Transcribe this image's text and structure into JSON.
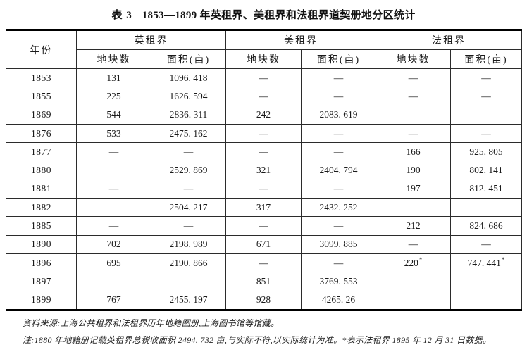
{
  "title_label": "表 3",
  "title_text": "1853—1899 年英租界、美租界和法租界道契册地分区统计",
  "colors": {
    "background": "#ffffff",
    "text": "#1a1a1a",
    "border_thin": "#2b2b2b",
    "border_thick": "#000000"
  },
  "table": {
    "year_header": "年份",
    "groups": [
      "英租界",
      "美租界",
      "法租界"
    ],
    "sub_headers": [
      "地块数",
      "面积(亩)"
    ],
    "rows": [
      {
        "year": "1853",
        "cells": [
          "131",
          "1096. 418",
          "—",
          "—",
          "—",
          "—"
        ]
      },
      {
        "year": "1855",
        "cells": [
          "225",
          "1626. 594",
          "—",
          "—",
          "—",
          "—"
        ]
      },
      {
        "year": "1869",
        "cells": [
          "544",
          "2836. 311",
          "242",
          "2083. 619",
          "",
          ""
        ]
      },
      {
        "year": "1876",
        "cells": [
          "533",
          "2475. 162",
          "—",
          "—",
          "—",
          "—"
        ]
      },
      {
        "year": "1877",
        "cells": [
          "—",
          "—",
          "—",
          "—",
          "166",
          "925. 805"
        ]
      },
      {
        "year": "1880",
        "cells": [
          "",
          "2529. 869",
          "321",
          "2404. 794",
          "190",
          "802. 141"
        ]
      },
      {
        "year": "1881",
        "cells": [
          "—",
          "—",
          "—",
          "—",
          "197",
          "812. 451"
        ]
      },
      {
        "year": "1882",
        "cells": [
          "",
          "2504. 217",
          "317",
          "2432. 252",
          "",
          ""
        ]
      },
      {
        "year": "1885",
        "cells": [
          "—",
          "—",
          "—",
          "—",
          "212",
          "824. 686"
        ]
      },
      {
        "year": "1890",
        "cells": [
          "702",
          "2198. 989",
          "671",
          "3099. 885",
          "—",
          "—"
        ]
      },
      {
        "year": "1896",
        "cells": [
          "695",
          "2190. 866",
          "—",
          "—",
          "220*",
          "747. 441*"
        ]
      },
      {
        "year": "1897",
        "cells": [
          "",
          "",
          "851",
          "3769. 553",
          "",
          ""
        ]
      },
      {
        "year": "1899",
        "cells": [
          "767",
          "2455. 197",
          "928",
          "4265. 26",
          "",
          ""
        ]
      }
    ]
  },
  "notes": {
    "source": "资料来源:上海公共租界和法租界历年地籍图册,上海图书馆等馆藏。",
    "remark": "注:1880 年地籍册记载英租界总税收面积 2494. 732 亩,与实际不符,以实际统计为准。*表示法租界 1895 年 12 月 31 日数据。"
  }
}
